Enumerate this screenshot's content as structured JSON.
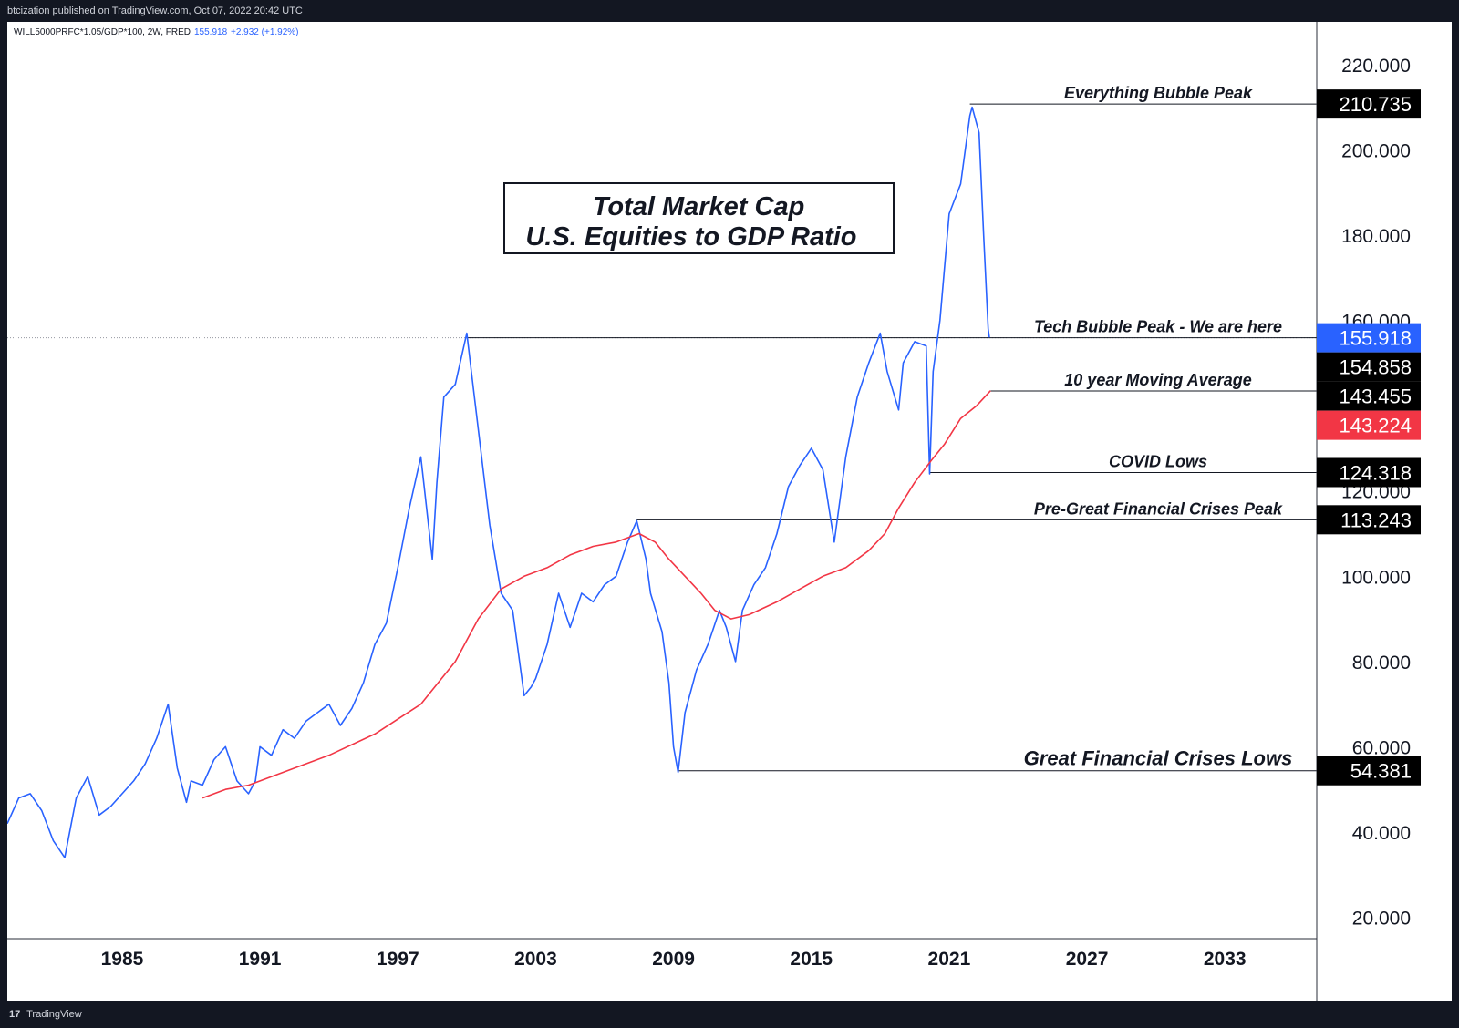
{
  "header": {
    "publisher_text": "btcization published on TradingView.com, Oct 07, 2022 20:42 UTC"
  },
  "footer": {
    "brand": "TradingView",
    "logo_glyph": "17"
  },
  "chart_data": {
    "type": "line",
    "title": "Total Market Cap",
    "subtitle": "U.S. Equities to GDP Ratio",
    "legend": {
      "symbol": "WILL5000PRFC*1.05/GDP*100, 2W, FRED",
      "last": "155.918",
      "change": "+2.932 (+1.92%)",
      "color": "#2962ff"
    },
    "x_axis": {
      "ticks": [
        "1985",
        "1991",
        "1997",
        "2003",
        "2009",
        "2015",
        "2021",
        "2027",
        "2033"
      ],
      "range": [
        1980.0,
        2037.0
      ]
    },
    "y_axis": {
      "ticks": [
        "20.000",
        "40.000",
        "60.000",
        "80.000",
        "100.000",
        "120.000",
        "160.000",
        "180.000",
        "200.000",
        "220.000"
      ],
      "range": [
        15,
        230
      ]
    },
    "series": [
      {
        "color": "#2962ff",
        "x": [
          1980.0,
          1980.5,
          1981.0,
          1981.5,
          1982.0,
          1982.5,
          1983.0,
          1983.5,
          1984.0,
          1984.5,
          1985.0,
          1985.5,
          1986.0,
          1986.5,
          1987.0,
          1987.4,
          1987.8,
          1988.0,
          1988.5,
          1989.0,
          1989.5,
          1990.0,
          1990.5,
          1990.8,
          1991.0,
          1991.5,
          1992.0,
          1992.5,
          1993.0,
          1993.5,
          1994.0,
          1994.5,
          1995.0,
          1995.5,
          1996.0,
          1996.5,
          1997.0,
          1997.5,
          1998.0,
          1998.5,
          1998.7,
          1999.0,
          1999.5,
          2000.0,
          2000.2,
          2000.6,
          2001.0,
          2001.5,
          2002.0,
          2002.5,
          2002.8,
          2003.0,
          2003.5,
          2004.0,
          2004.5,
          2005.0,
          2005.5,
          2006.0,
          2006.5,
          2007.0,
          2007.4,
          2007.8,
          2008.0,
          2008.5,
          2008.8,
          2009.0,
          2009.2,
          2009.5,
          2010.0,
          2010.5,
          2011.0,
          2011.3,
          2011.7,
          2012.0,
          2012.5,
          2013.0,
          2013.5,
          2014.0,
          2014.5,
          2015.0,
          2015.5,
          2016.0,
          2016.5,
          2017.0,
          2017.5,
          2018.0,
          2018.3,
          2018.8,
          2019.0,
          2019.5,
          2020.0,
          2020.15,
          2020.3,
          2020.6,
          2021.0,
          2021.5,
          2021.9,
          2022.0,
          2022.3,
          2022.5,
          2022.7,
          2022.75
        ],
        "values": [
          42,
          48,
          49,
          45,
          38,
          34,
          48,
          53,
          44,
          46,
          49,
          52,
          56,
          62,
          70,
          55,
          47,
          52,
          51,
          57,
          60,
          52,
          49,
          52,
          60,
          58,
          64,
          62,
          66,
          68,
          70,
          65,
          69,
          75,
          84,
          89,
          102,
          116,
          128,
          104,
          122,
          142,
          145,
          157,
          148,
          130,
          112,
          96,
          92,
          72,
          74,
          76,
          84,
          96,
          88,
          96,
          94,
          98,
          100,
          108,
          113,
          104,
          96,
          87,
          75,
          60,
          54,
          68,
          78,
          84,
          92,
          88,
          80,
          92,
          98,
          102,
          110,
          121,
          126,
          130,
          125,
          108,
          128,
          142,
          150,
          157,
          148,
          139,
          150,
          155,
          154,
          124,
          148,
          160,
          185,
          192,
          208,
          210,
          204,
          180,
          158,
          156
        ]
      },
      {
        "color": "#f23645",
        "x": [
          1988.5,
          1989.5,
          1990.5,
          1992,
          1994,
          1996,
          1998,
          1999.5,
          2000.5,
          2001.5,
          2002.5,
          2003.5,
          2004.5,
          2005.5,
          2006.5,
          2007.5,
          2008.2,
          2008.8,
          2009.5,
          2010.2,
          2010.8,
          2011.5,
          2012.3,
          2013.5,
          2014.5,
          2015.5,
          2016.5,
          2017.5,
          2018.2,
          2018.8,
          2019.5,
          2020.2,
          2020.8,
          2021.5,
          2022.2,
          2022.8
        ],
        "values": [
          48,
          50,
          51,
          54,
          58,
          63,
          70,
          80,
          90,
          97,
          100,
          102,
          105,
          107,
          108,
          110,
          108,
          104,
          100,
          96,
          92,
          90,
          91,
          94,
          97,
          100,
          102,
          106,
          110,
          116,
          122,
          127,
          131,
          137,
          140,
          143.5
        ]
      }
    ],
    "price_labels": [
      {
        "value": "210.735",
        "y": 210.735,
        "bg": "#000000"
      },
      {
        "value": "155.918",
        "y": 155.918,
        "bg": "#2962ff"
      },
      {
        "value": "154.858",
        "y": 154.858,
        "bg": "#000000"
      },
      {
        "value": "143.455",
        "y": 143.455,
        "bg": "#000000"
      },
      {
        "value": "143.224",
        "y": 143.224,
        "bg": "#f23645"
      },
      {
        "value": "124.318",
        "y": 124.318,
        "bg": "#000000"
      },
      {
        "value": "113.243",
        "y": 113.243,
        "bg": "#000000"
      },
      {
        "value": "54.381",
        "y": 54.381,
        "bg": "#000000"
      }
    ],
    "annotations": [
      {
        "text": "Everything Bubble Peak",
        "y": 210.735,
        "x_start": 2021.9
      },
      {
        "text": "Tech Bubble Peak - We are here",
        "y": 155.918,
        "x_start": 2000.0
      },
      {
        "text": "10 year Moving Average",
        "y": 143.455,
        "x_start": 2022.8
      },
      {
        "text": "COVID Lows",
        "y": 124.318,
        "x_start": 2020.15
      },
      {
        "text": "Pre-Great Financial Crises Peak",
        "y": 113.243,
        "x_start": 2007.4
      },
      {
        "text": "Great Financial Crises Lows",
        "y": 54.381,
        "x_start": 2009.2
      }
    ]
  }
}
